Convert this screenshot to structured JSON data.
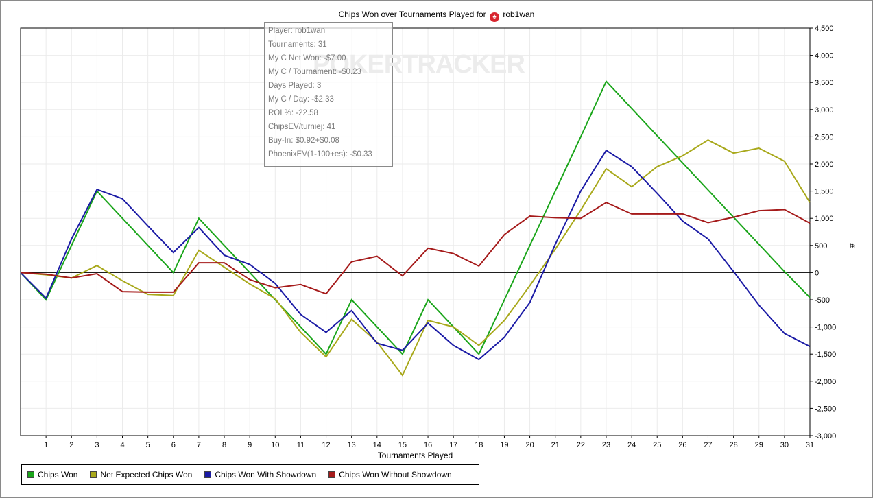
{
  "chart_data": {
    "type": "line",
    "title_prefix": "Chips Won over Tournaments Played for",
    "player_name": "rob1wan",
    "player_icon": "spade-icon",
    "xlabel": "Tournaments Played",
    "ylabel": "#",
    "x": [
      0,
      1,
      2,
      3,
      4,
      5,
      6,
      7,
      8,
      9,
      10,
      11,
      12,
      13,
      14,
      15,
      16,
      17,
      18,
      19,
      20,
      21,
      22,
      23,
      24,
      25,
      26,
      27,
      28,
      29,
      30,
      31
    ],
    "xlim": [
      0,
      31
    ],
    "ylim": [
      -3000,
      4500
    ],
    "y_ticks": [
      4500,
      4000,
      3500,
      3000,
      2500,
      2000,
      1500,
      1000,
      500,
      0,
      -500,
      -1000,
      -1500,
      -2000,
      -2500,
      -3000
    ],
    "y_tick_labels": [
      "4,500",
      "4,000",
      "3,500",
      "3,000",
      "2,500",
      "2,000",
      "1,500",
      "1,000",
      "500",
      "0",
      "-500",
      "-1,000",
      "-1,500",
      "-2,000",
      "-2,500",
      "-3,000"
    ],
    "x_tick_labels": [
      "1",
      "2",
      "3",
      "4",
      "5",
      "6",
      "7",
      "8",
      "9",
      "10",
      "11",
      "12",
      "13",
      "14",
      "15",
      "16",
      "17",
      "18",
      "19",
      "20",
      "21",
      "22",
      "23",
      "24",
      "25",
      "26",
      "27",
      "28",
      "29",
      "30",
      "31"
    ],
    "grid": true,
    "legend_position": "bottom-left",
    "series": [
      {
        "name": "Chips Won",
        "color": "#1aa51a",
        "values": [
          0,
          -500,
          500,
          1500,
          1000,
          500,
          0,
          1000,
          500,
          0,
          -500,
          -1000,
          -1500,
          -500,
          -1000,
          -1500,
          -500,
          -1000,
          -1500,
          -500,
          500,
          1500,
          2500,
          3520,
          3020,
          2520,
          2020,
          1520,
          1020,
          520,
          20,
          -460
        ]
      },
      {
        "name": "Net Expected Chips Won",
        "color": "#a8a81a",
        "values": [
          0,
          -40,
          -100,
          130,
          -150,
          -400,
          -420,
          410,
          100,
          -210,
          -480,
          -1100,
          -1550,
          -860,
          -1280,
          -1890,
          -880,
          -1000,
          -1340,
          -880,
          -240,
          430,
          1150,
          1910,
          1580,
          1950,
          2150,
          2440,
          2200,
          2290,
          2050,
          1290
        ]
      },
      {
        "name": "Chips Won With Showdown",
        "color": "#1a1aa5",
        "values": [
          0,
          -470,
          620,
          1530,
          1360,
          860,
          370,
          830,
          320,
          150,
          -200,
          -770,
          -1100,
          -700,
          -1300,
          -1430,
          -930,
          -1340,
          -1600,
          -1190,
          -550,
          520,
          1500,
          2250,
          1950,
          1460,
          950,
          620,
          20,
          -600,
          -1120,
          -1360
        ]
      },
      {
        "name": "Chips Won Without Showdown",
        "color": "#a51a1a",
        "values": [
          0,
          -30,
          -100,
          -20,
          -350,
          -360,
          -360,
          180,
          180,
          -130,
          -280,
          -220,
          -390,
          200,
          300,
          -60,
          450,
          350,
          120,
          700,
          1040,
          1010,
          1000,
          1290,
          1080,
          1080,
          1080,
          920,
          1020,
          1140,
          1160,
          910
        ]
      }
    ]
  },
  "tooltip": {
    "watermark": "POKERTRACKER",
    "lines": [
      "Player: rob1wan",
      "Tournaments: 31",
      "My C Net Won: -$7.00",
      "My C / Tournament: -$0.23",
      "Days Played: 3",
      "My C / Day: -$2.33",
      "ROI %: -22.58",
      "ChipsEV/turniej: 41",
      "Buy-In: $0.92+$0.08",
      "PhoenixEV(1-100+es): -$0.33"
    ]
  },
  "legend": {
    "items": [
      "Chips Won",
      "Net Expected Chips Won",
      "Chips Won With Showdown",
      "Chips Won Without Showdown"
    ],
    "colors": [
      "#1aa51a",
      "#a8a81a",
      "#1a1aa5",
      "#a51a1a"
    ]
  }
}
